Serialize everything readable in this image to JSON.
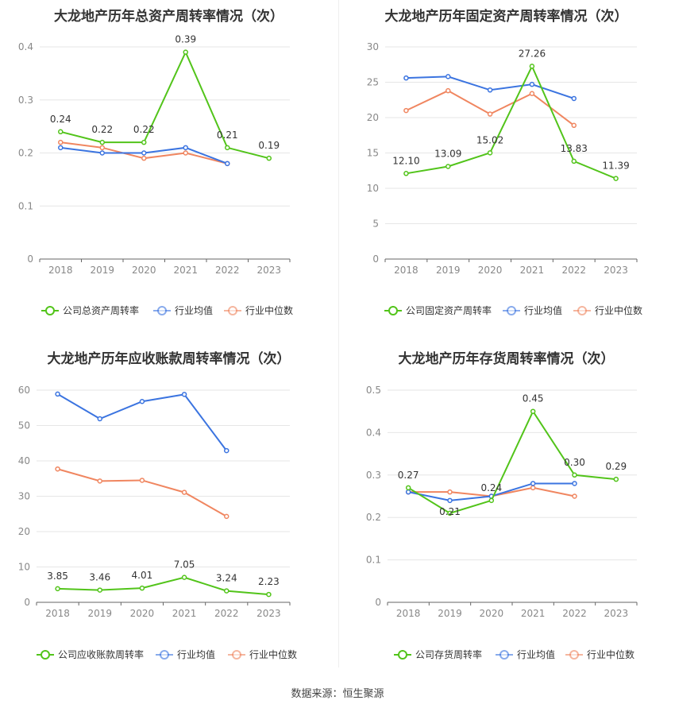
{
  "colors": {
    "company": "#52c41a",
    "avg": "#3b74e0",
    "median": "#f08660"
  },
  "source_text": "数据来源：恒生聚源",
  "chart_data": [
    {
      "type": "line",
      "title": "大龙地产历年总资产周转率情况（次）",
      "categories": [
        "2018",
        "2019",
        "2020",
        "2021",
        "2022",
        "2023"
      ],
      "ylim": [
        0,
        0.4
      ],
      "yticks": [
        0,
        0.1,
        0.2,
        0.3,
        0.4
      ],
      "yticklabels": [
        "0",
        "0.1",
        "0.2",
        "0.3",
        "0.4"
      ],
      "grid": true,
      "legend": "bottom",
      "series": [
        {
          "name": "公司总资产周转率",
          "values": [
            0.24,
            0.22,
            0.22,
            0.39,
            0.21,
            0.19
          ],
          "labels": [
            "0.24",
            "0.22",
            "0.22",
            "0.39",
            "0.21",
            "0.19"
          ]
        },
        {
          "name": "行业均值",
          "values": [
            0.21,
            0.2,
            0.2,
            0.21,
            0.18,
            null
          ]
        },
        {
          "name": "行业中位数",
          "values": [
            0.22,
            0.21,
            0.19,
            0.2,
            0.18,
            null
          ]
        }
      ]
    },
    {
      "type": "line",
      "title": "大龙地产历年固定资产周转率情况（次）",
      "categories": [
        "2018",
        "2019",
        "2020",
        "2021",
        "2022",
        "2023"
      ],
      "ylim": [
        0,
        30
      ],
      "yticks": [
        0,
        5,
        10,
        15,
        20,
        25,
        30
      ],
      "yticklabels": [
        "0",
        "5",
        "10",
        "15",
        "20",
        "25",
        "30"
      ],
      "grid": true,
      "legend": "bottom",
      "series": [
        {
          "name": "公司固定资产周转率",
          "values": [
            12.1,
            13.09,
            15.02,
            27.26,
            13.83,
            11.39
          ],
          "labels": [
            "12.10",
            "13.09",
            "15.02",
            "27.26",
            "13.83",
            "11.39"
          ]
        },
        {
          "name": "行业均值",
          "values": [
            25.6,
            25.8,
            23.9,
            24.7,
            22.7,
            null
          ]
        },
        {
          "name": "行业中位数",
          "values": [
            21.0,
            23.8,
            20.5,
            23.4,
            18.9,
            null
          ]
        }
      ]
    },
    {
      "type": "line",
      "title": "大龙地产历年应收账款周转率情况（次）",
      "categories": [
        "2018",
        "2019",
        "2020",
        "2021",
        "2022",
        "2023"
      ],
      "ylim": [
        0,
        60
      ],
      "yticks": [
        0,
        10,
        20,
        30,
        40,
        50,
        60
      ],
      "yticklabels": [
        "0",
        "10",
        "20",
        "30",
        "40",
        "50",
        "60"
      ],
      "grid": true,
      "legend": "bottom",
      "series": [
        {
          "name": "公司应收账款周转率",
          "values": [
            3.85,
            3.46,
            4.01,
            7.05,
            3.24,
            2.23
          ],
          "labels": [
            "3.85",
            "3.46",
            "4.01",
            "7.05",
            "3.24",
            "2.23"
          ]
        },
        {
          "name": "行业均值",
          "values": [
            58.9,
            51.9,
            56.8,
            58.8,
            42.9,
            null
          ]
        },
        {
          "name": "行业中位数",
          "values": [
            37.7,
            34.3,
            34.5,
            31.1,
            24.3,
            null
          ]
        }
      ]
    },
    {
      "type": "line",
      "title": "大龙地产历年存货周转率情况（次）",
      "categories": [
        "2018",
        "2019",
        "2020",
        "2021",
        "2022",
        "2023"
      ],
      "ylim": [
        0,
        0.5
      ],
      "yticks": [
        0,
        0.1,
        0.2,
        0.3,
        0.4,
        0.5
      ],
      "yticklabels": [
        "0",
        "0.1",
        "0.2",
        "0.3",
        "0.4",
        "0.5"
      ],
      "grid": true,
      "legend": "bottom",
      "series": [
        {
          "name": "公司存货周转率",
          "values": [
            0.27,
            0.21,
            0.24,
            0.45,
            0.3,
            0.29
          ],
          "labels": [
            "0.27",
            "0.21",
            "0.24",
            "0.45",
            "0.30",
            "0.29"
          ]
        },
        {
          "name": "行业均值",
          "values": [
            0.26,
            0.24,
            0.25,
            0.28,
            0.28,
            null
          ]
        },
        {
          "name": "行业中位数",
          "values": [
            0.26,
            0.26,
            0.25,
            0.27,
            0.25,
            null
          ]
        }
      ]
    }
  ]
}
